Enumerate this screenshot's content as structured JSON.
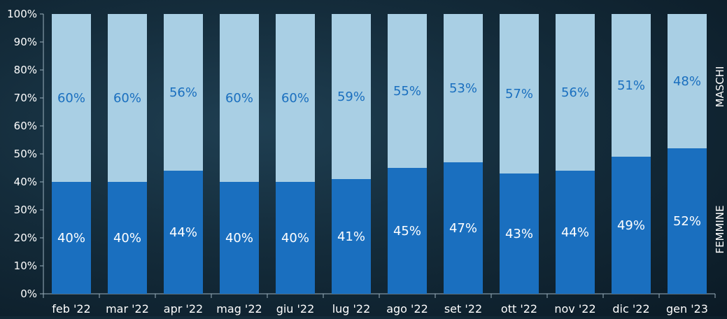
{
  "chart_data": {
    "type": "bar",
    "stacked": true,
    "categories": [
      "feb '22",
      "mar '22",
      "apr '22",
      "mag '22",
      "giu '22",
      "lug '22",
      "ago '22",
      "set '22",
      "ott '22",
      "nov '22",
      "dic '22",
      "gen '23"
    ],
    "series": [
      {
        "name": "FEMMINE",
        "color": "#1a6fbf",
        "label_color": "#ffffff",
        "values": [
          40,
          40,
          44,
          40,
          40,
          41,
          45,
          47,
          43,
          44,
          49,
          52
        ],
        "labels": [
          "40%",
          "40%",
          "44%",
          "40%",
          "40%",
          "41%",
          "45%",
          "47%",
          "43%",
          "44%",
          "49%",
          "52%"
        ]
      },
      {
        "name": "MASCHI",
        "color": "#a9cfe4",
        "label_color": "#1a6fbf",
        "values": [
          60,
          60,
          56,
          60,
          60,
          59,
          55,
          53,
          57,
          56,
          51,
          48
        ],
        "labels": [
          "60%",
          "60%",
          "56%",
          "60%",
          "60%",
          "59%",
          "55%",
          "53%",
          "57%",
          "56%",
          "51%",
          "48%"
        ]
      }
    ],
    "ylim": [
      0,
      100
    ],
    "yticks": [
      "0%",
      "10%",
      "20%",
      "30%",
      "40%",
      "50%",
      "60%",
      "70%",
      "80%",
      "90%",
      "100%"
    ],
    "grid": false,
    "legend": "right side, vertical"
  }
}
